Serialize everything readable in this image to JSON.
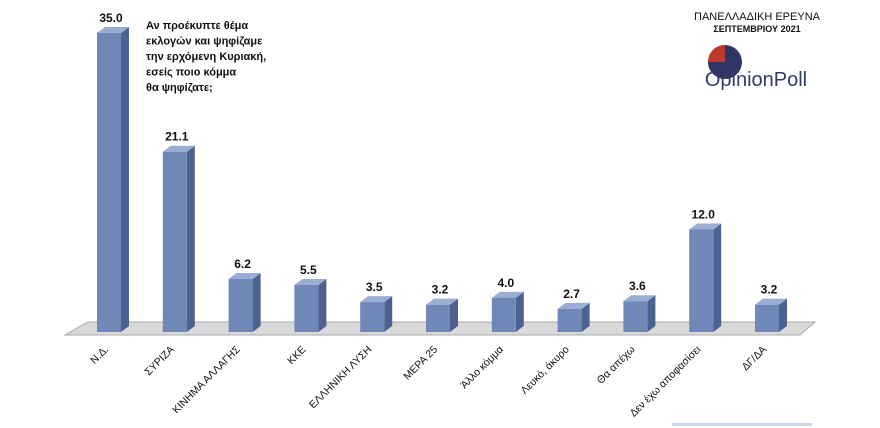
{
  "chart_data": {
    "type": "bar3d",
    "annotation_lines": [
      "Αν προέκυπτε θέμα",
      "εκλογών και ψηφίζαμε",
      "την ερχόμενη Κυριακή,",
      "εσείς ποιο κόμμα",
      "θα ψηφίζατε;"
    ],
    "logo_title": "ΠΑΝΕΛΛΑΔΙΚΗ ΕΡΕΥΝΑ",
    "logo_subtitle": "ΣΕΠΤΕΜΒΡΙΟΥ 2021",
    "logo_brand": "OpinionPoll",
    "categories": [
      "Ν.Δ.",
      "ΣΥΡΙΖΑ",
      "ΚΙΝΗΜΑ ΑΛΛΑΓΗΣ",
      "ΚΚΕ",
      "ΕΛΛΗΝΙΚΗ ΛΥΣΗ",
      "ΜΕΡΑ 25",
      "Άλλο κόμμα",
      "Λευκό, άκυρο",
      "Θα απέχω",
      "Δεν έχω αποφασίσει",
      "ΔΓ/ΔΑ"
    ],
    "values": [
      35.0,
      21.1,
      6.2,
      5.5,
      3.5,
      3.2,
      4.0,
      2.7,
      3.6,
      12.0,
      3.2
    ],
    "value_labels": [
      "35.0",
      "21.1",
      "6.2",
      "5.5",
      "3.5",
      "3.2",
      "4.0",
      "2.7",
      "3.6",
      "12.0",
      "3.2"
    ],
    "color": "#6f88b8"
  }
}
